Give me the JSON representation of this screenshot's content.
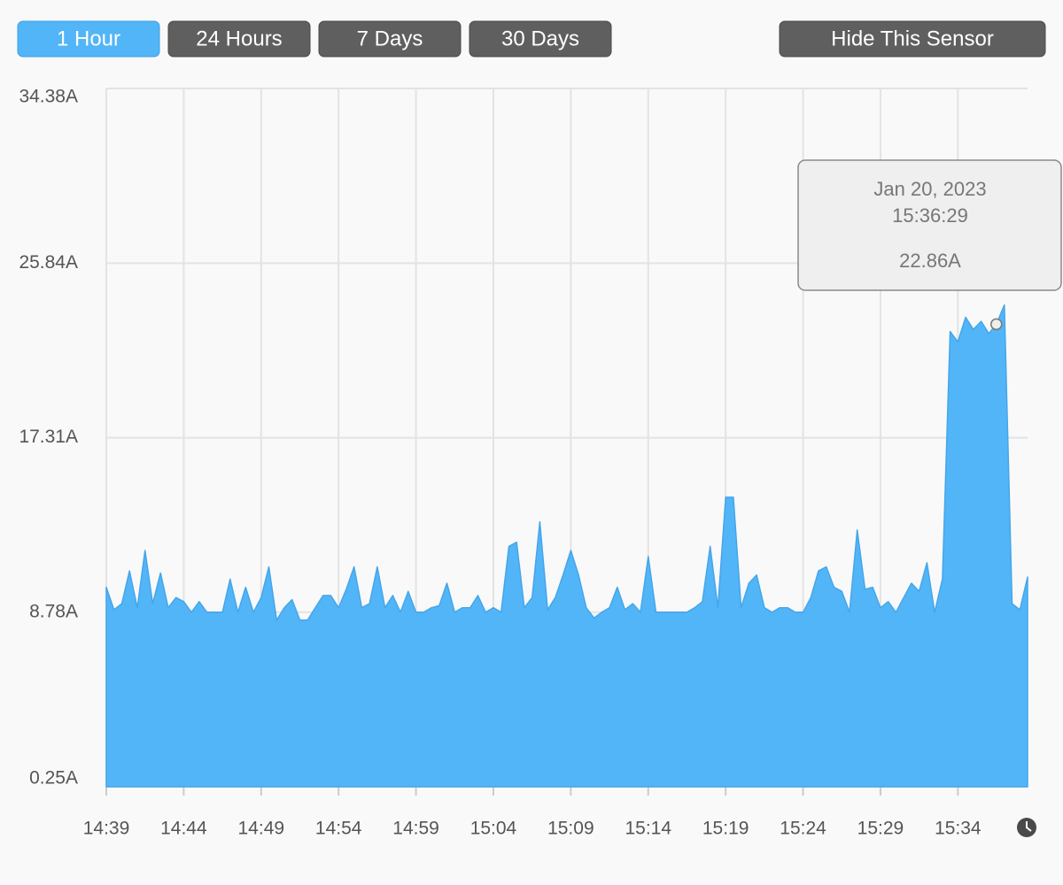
{
  "range_buttons": [
    "1 Hour",
    "24 Hours",
    "7 Days",
    "30 Days"
  ],
  "selected": "1 Hour",
  "hide_button": "Hide This Sensor",
  "chart_data": {
    "type": "area",
    "ylim": [
      0.25,
      34.38
    ],
    "yticks": [
      {
        "value": 0.25,
        "label": "0.25A"
      },
      {
        "value": 8.78,
        "label": "8.78A"
      },
      {
        "value": 17.31,
        "label": "17.31A"
      },
      {
        "value": 25.84,
        "label": "25.84A"
      },
      {
        "value": 34.38,
        "label": "34.38A"
      }
    ],
    "xlim": [
      "14:39:00",
      "15:38:30"
    ],
    "xticks": [
      "14:39",
      "14:44",
      "14:49",
      "14:54",
      "14:59",
      "15:04",
      "15:09",
      "15:14",
      "15:19",
      "15:24",
      "15:29",
      "15:34"
    ],
    "grid": true,
    "x": [
      "14:39:00",
      "14:39:30",
      "14:40:00",
      "14:40:30",
      "14:41:00",
      "14:41:30",
      "14:42:00",
      "14:42:30",
      "14:43:00",
      "14:43:30",
      "14:44:00",
      "14:44:30",
      "14:45:00",
      "14:45:30",
      "14:46:00",
      "14:46:30",
      "14:47:00",
      "14:47:30",
      "14:48:00",
      "14:48:30",
      "14:49:00",
      "14:49:30",
      "14:50:00",
      "14:50:30",
      "14:51:00",
      "14:51:30",
      "14:52:00",
      "14:52:30",
      "14:53:00",
      "14:53:30",
      "14:54:00",
      "14:54:30",
      "14:55:00",
      "14:55:30",
      "14:56:00",
      "14:56:30",
      "14:57:00",
      "14:57:30",
      "14:58:00",
      "14:58:30",
      "14:59:00",
      "14:59:30",
      "15:00:00",
      "15:00:30",
      "15:01:00",
      "15:01:30",
      "15:02:00",
      "15:02:30",
      "15:03:00",
      "15:03:30",
      "15:04:00",
      "15:04:30",
      "15:05:00",
      "15:05:30",
      "15:06:00",
      "15:06:30",
      "15:07:00",
      "15:07:30",
      "15:08:00",
      "15:08:30",
      "15:09:00",
      "15:09:30",
      "15:10:00",
      "15:10:30",
      "15:11:00",
      "15:11:30",
      "15:12:00",
      "15:12:30",
      "15:13:00",
      "15:13:30",
      "15:14:00",
      "15:14:30",
      "15:15:00",
      "15:15:30",
      "15:16:00",
      "15:16:30",
      "15:17:00",
      "15:17:30",
      "15:18:00",
      "15:18:30",
      "15:19:00",
      "15:19:30",
      "15:20:00",
      "15:20:30",
      "15:21:00",
      "15:21:30",
      "15:22:00",
      "15:22:30",
      "15:23:00",
      "15:23:30",
      "15:24:00",
      "15:24:30",
      "15:25:00",
      "15:25:30",
      "15:26:00",
      "15:26:30",
      "15:27:00",
      "15:27:30",
      "15:28:00",
      "15:28:30",
      "15:29:00",
      "15:29:30",
      "15:30:00",
      "15:30:30",
      "15:31:00",
      "15:31:30",
      "15:32:00",
      "15:32:30",
      "15:33:00",
      "15:33:30",
      "15:34:00",
      "15:34:30",
      "15:35:00",
      "15:35:30",
      "15:36:00",
      "15:36:29",
      "15:37:00",
      "15:37:30",
      "15:38:00",
      "15:38:30"
    ],
    "series": [
      {
        "color": "#52b5f7",
        "values": [
          10.0,
          8.9,
          9.2,
          10.8,
          9.0,
          11.8,
          9.2,
          10.7,
          9.0,
          9.5,
          9.3,
          8.78,
          9.3,
          8.78,
          8.78,
          8.78,
          10.4,
          8.78,
          10.0,
          8.78,
          9.5,
          11.0,
          8.4,
          9.0,
          9.4,
          8.4,
          8.4,
          9.0,
          9.6,
          9.6,
          9.0,
          9.9,
          11.0,
          9.0,
          9.2,
          11.0,
          9.0,
          9.6,
          8.78,
          9.8,
          8.78,
          8.78,
          9.0,
          9.1,
          10.2,
          8.78,
          9.0,
          9.0,
          9.6,
          8.78,
          9.0,
          8.78,
          12.0,
          12.2,
          9.0,
          9.5,
          13.2,
          8.9,
          9.5,
          10.6,
          11.8,
          10.6,
          9.0,
          8.5,
          8.78,
          9.0,
          10.0,
          8.9,
          9.2,
          8.78,
          11.5,
          8.78,
          8.78,
          8.78,
          8.78,
          8.78,
          9.0,
          9.3,
          12.0,
          9.0,
          14.4,
          14.4,
          9.0,
          10.2,
          10.6,
          9.0,
          8.78,
          9.0,
          9.0,
          8.78,
          8.78,
          9.5,
          10.8,
          11.0,
          10.0,
          9.8,
          8.78,
          12.8,
          9.9,
          10.0,
          9.0,
          9.3,
          8.78,
          9.5,
          10.2,
          9.8,
          11.2,
          8.78,
          10.4,
          22.5,
          22.0,
          23.2,
          22.6,
          23.0,
          22.4,
          22.86,
          23.8,
          9.2,
          8.9,
          10.5
        ]
      }
    ],
    "tooltip": {
      "date": "Jan 20, 2023",
      "time": "15:36:29",
      "label": "22.86A"
    }
  }
}
